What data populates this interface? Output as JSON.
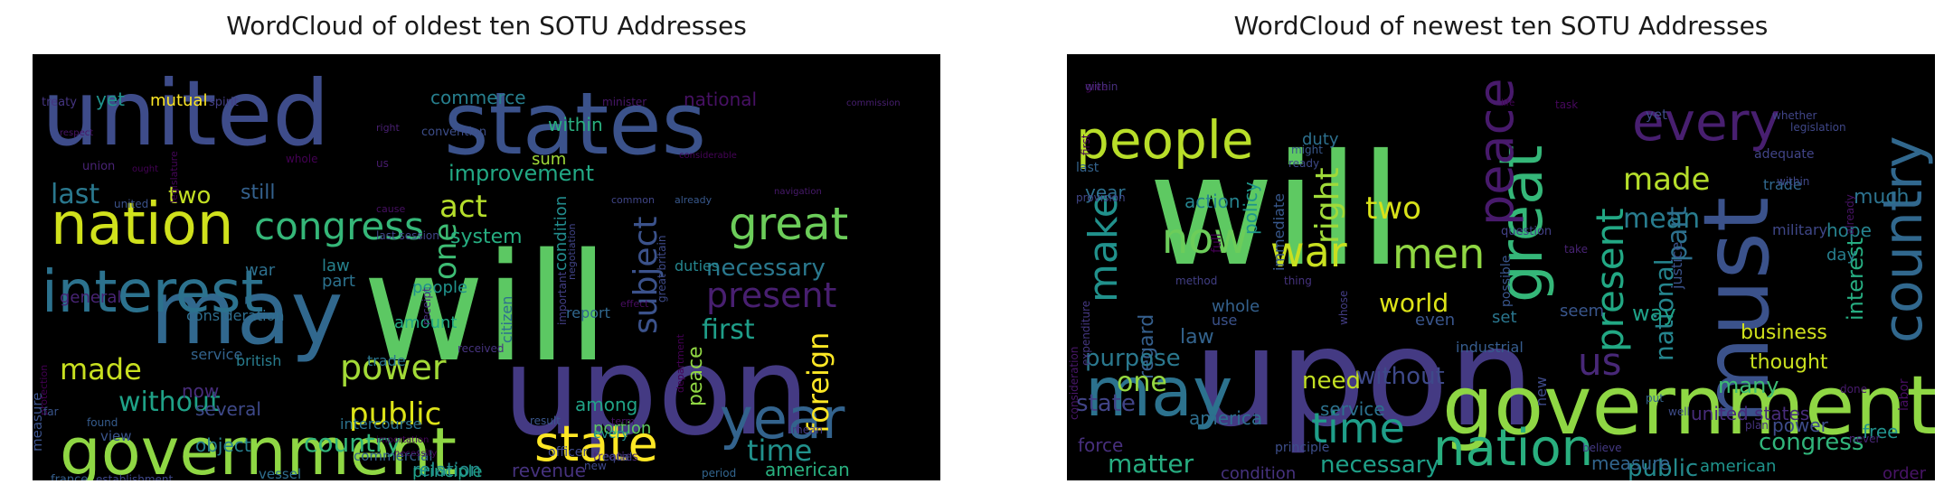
{
  "left": {
    "title": "WordCloud of oldest ten SOTU Addresses",
    "words": [
      {
        "t": "will",
        "c": "#5cc863"
      },
      {
        "t": "upon",
        "c": "#443a83"
      },
      {
        "t": "states",
        "c": "#3b528b"
      },
      {
        "t": "united",
        "c": "#3e4c8a"
      },
      {
        "t": "may",
        "c": "#31688e"
      },
      {
        "t": "government",
        "c": "#8fd744"
      },
      {
        "t": "nation",
        "c": "#d0e11c"
      },
      {
        "t": "interest",
        "c": "#2c728e"
      },
      {
        "t": "state",
        "c": "#fde725"
      },
      {
        "t": "year",
        "c": "#33638d"
      },
      {
        "t": "great",
        "c": "#6ccd5a"
      },
      {
        "t": "congress",
        "c": "#35b779"
      },
      {
        "t": "act",
        "c": "#b5de2b"
      },
      {
        "t": "present",
        "c": "#481f70"
      },
      {
        "t": "power",
        "c": "#a2da37"
      },
      {
        "t": "public",
        "c": "#dde318"
      },
      {
        "t": "made",
        "c": "#c8e020"
      },
      {
        "t": "last",
        "c": "#2a788e"
      },
      {
        "t": "time",
        "c": "#21918c"
      },
      {
        "t": "one",
        "c": "#3dbc74"
      },
      {
        "t": "subject",
        "c": "#3b528b"
      },
      {
        "t": "foreign",
        "c": "#fde725"
      },
      {
        "t": "first",
        "c": "#1f9e89"
      },
      {
        "t": "without",
        "c": "#1fa187"
      },
      {
        "t": "country",
        "c": "#31b57b"
      },
      {
        "t": "necessary",
        "c": "#2a788e"
      },
      {
        "t": "improvement",
        "c": "#22a884"
      },
      {
        "t": "system",
        "c": "#26ad81"
      },
      {
        "t": "two",
        "c": "#c2df23"
      },
      {
        "t": "still",
        "c": "#34618d"
      },
      {
        "t": "yet",
        "c": "#1f948c"
      },
      {
        "t": "mutual",
        "c": "#fde725"
      },
      {
        "t": "commerce",
        "c": "#277f8e"
      },
      {
        "t": "within",
        "c": "#29af7f"
      },
      {
        "t": "national",
        "c": "#471164"
      },
      {
        "t": "sum",
        "c": "#a0da39"
      },
      {
        "t": "relation",
        "c": "#238a8d"
      },
      {
        "t": "revenue",
        "c": "#46327e"
      },
      {
        "t": "american",
        "c": "#29af7f"
      },
      {
        "t": "peace",
        "c": "#90d743"
      },
      {
        "t": "among",
        "c": "#20a386"
      },
      {
        "t": "portion",
        "c": "#5ec962"
      },
      {
        "t": "several",
        "c": "#3e4989"
      },
      {
        "t": "amount",
        "c": "#22a884"
      },
      {
        "t": "general",
        "c": "#482475"
      },
      {
        "t": "law",
        "c": "#26828e"
      },
      {
        "t": "war",
        "c": "#2d708e"
      },
      {
        "t": "part",
        "c": "#2c728e"
      },
      {
        "t": "now",
        "c": "#472c7a"
      },
      {
        "t": "object",
        "c": "#277f8e"
      },
      {
        "t": "principle",
        "c": "#1fa088"
      },
      {
        "t": "condition",
        "c": "#228c8d"
      },
      {
        "t": "people",
        "c": "#20928c"
      },
      {
        "t": "report",
        "c": "#31688e"
      },
      {
        "t": "consideration",
        "c": "#2e6e8e"
      },
      {
        "t": "citizen",
        "c": "#2d708e"
      },
      {
        "t": "duties",
        "c": "#25858e"
      },
      {
        "t": "service",
        "c": "#33638d"
      },
      {
        "t": "british",
        "c": "#287c8e"
      },
      {
        "t": "trade",
        "c": "#2a768e"
      },
      {
        "t": "intercourse",
        "c": "#2c728e"
      },
      {
        "t": "vessel",
        "c": "#2e6d8e"
      },
      {
        "t": "commercial",
        "c": "#34618d"
      },
      {
        "t": "view",
        "c": "#3a548c"
      },
      {
        "t": "every",
        "c": "#21918c"
      },
      {
        "t": "officer",
        "c": "#3e4989"
      },
      {
        "t": "measure",
        "c": "#3b528b"
      },
      {
        "t": "france",
        "c": "#355f8d"
      },
      {
        "t": "establishment",
        "c": "#3f4788"
      },
      {
        "t": "period",
        "c": "#32658e"
      },
      {
        "t": "protection",
        "c": "#440154"
      },
      {
        "t": "treaties",
        "c": "#482878"
      },
      {
        "t": "united",
        "c": "#3b528b"
      },
      {
        "t": "found",
        "c": "#365c8d"
      },
      {
        "t": "far",
        "c": "#39558c"
      },
      {
        "t": "result",
        "c": "#39568c"
      },
      {
        "t": "new",
        "c": "#3f4889"
      },
      {
        "t": "equal",
        "c": "#3e4989"
      },
      {
        "t": "mean",
        "c": "#443983"
      },
      {
        "t": "convention",
        "c": "#3d4e8a"
      },
      {
        "t": "union",
        "c": "#482374"
      },
      {
        "t": "spirit",
        "c": "#433d84"
      },
      {
        "t": "treaty",
        "c": "#453581"
      },
      {
        "t": "us",
        "c": "#481b6d"
      },
      {
        "t": "common",
        "c": "#404688"
      },
      {
        "t": "already",
        "c": "#38588c"
      },
      {
        "t": "great britain",
        "c": "#3e4a89"
      },
      {
        "t": "negotiation",
        "c": "#414487"
      },
      {
        "t": "important",
        "c": "#423f85"
      },
      {
        "t": "last session",
        "c": "#404588"
      },
      {
        "t": "received",
        "c": "#46337f"
      },
      {
        "t": "receipt",
        "c": "#472d7b"
      },
      {
        "t": "minister",
        "c": "#481769"
      },
      {
        "t": "right",
        "c": "#482071"
      },
      {
        "t": "whole",
        "c": "#440154"
      },
      {
        "t": "cause",
        "c": "#471063"
      },
      {
        "t": "department",
        "c": "#440154"
      },
      {
        "t": "legislature",
        "c": "#450559"
      },
      {
        "t": "term",
        "c": "#471365"
      },
      {
        "t": "effect",
        "c": "#470d60"
      },
      {
        "t": "importation",
        "c": "#46085c"
      },
      {
        "t": "necessity",
        "c": "#460a5d"
      },
      {
        "t": "considerable",
        "c": "#450457"
      },
      {
        "t": "ought",
        "c": "#440256"
      },
      {
        "t": "respect",
        "c": "#481467"
      },
      {
        "t": "navigation",
        "c": "#481a6c"
      },
      {
        "t": "commission",
        "c": "#481f70"
      }
    ]
  },
  "right": {
    "title": "WordCloud of newest ten SOTU Addresses",
    "words": [
      {
        "t": "will",
        "c": "#5ec962"
      },
      {
        "t": "upon",
        "c": "#443a83"
      },
      {
        "t": "must",
        "c": "#3b528b"
      },
      {
        "t": "government",
        "c": "#8fd744"
      },
      {
        "t": "may",
        "c": "#2c728e"
      },
      {
        "t": "great",
        "c": "#35b779"
      },
      {
        "t": "country",
        "c": "#31688e"
      },
      {
        "t": "people",
        "c": "#b8de29"
      },
      {
        "t": "every",
        "c": "#481f70"
      },
      {
        "t": "nation",
        "c": "#29af7f"
      },
      {
        "t": "peace",
        "c": "#481a6c"
      },
      {
        "t": "now",
        "c": "#6ccd5a"
      },
      {
        "t": "war",
        "c": "#c8e020"
      },
      {
        "t": "men",
        "c": "#90d743"
      },
      {
        "t": "make",
        "c": "#21918c"
      },
      {
        "t": "present",
        "c": "#22a884"
      },
      {
        "t": "time",
        "c": "#1f9e89"
      },
      {
        "t": "us",
        "c": "#482878"
      },
      {
        "t": "right",
        "c": "#a0da39"
      },
      {
        "t": "made",
        "c": "#b5de2b"
      },
      {
        "t": "two",
        "c": "#d8e219"
      },
      {
        "t": "mean",
        "c": "#287c8e"
      },
      {
        "t": "national",
        "c": "#25858e"
      },
      {
        "t": "part",
        "c": "#2d708e"
      },
      {
        "t": "interest",
        "c": "#26ad81"
      },
      {
        "t": "way",
        "c": "#1fa188"
      },
      {
        "t": "world",
        "c": "#dde318"
      },
      {
        "t": "congress",
        "c": "#31b57b"
      },
      {
        "t": "many",
        "c": "#3dbc74"
      },
      {
        "t": "business",
        "c": "#d0e11c"
      },
      {
        "t": "thought",
        "c": "#cae11f"
      },
      {
        "t": "need",
        "c": "#c2df23"
      },
      {
        "t": "without",
        "c": "#3e4989"
      },
      {
        "t": "necessary",
        "c": "#1fa088"
      },
      {
        "t": "public",
        "c": "#238a8d"
      },
      {
        "t": "matter",
        "c": "#27ad81"
      },
      {
        "t": "service",
        "c": "#2c728e"
      },
      {
        "t": "action",
        "c": "#25838e"
      },
      {
        "t": "policy",
        "c": "#1f958b"
      },
      {
        "t": "duty",
        "c": "#2d708e"
      },
      {
        "t": "law",
        "c": "#33638d"
      },
      {
        "t": "regard",
        "c": "#355f8d"
      },
      {
        "t": "one",
        "c": "#95d840"
      },
      {
        "t": "purpose",
        "c": "#2a788e"
      },
      {
        "t": "state",
        "c": "#414487"
      },
      {
        "t": "america",
        "c": "#2e6e8e"
      },
      {
        "t": "force",
        "c": "#472f7d"
      },
      {
        "t": "condition",
        "c": "#46327e"
      },
      {
        "t": "measure",
        "c": "#32658e"
      },
      {
        "t": "hope",
        "c": "#26828e"
      },
      {
        "t": "seem",
        "c": "#39568c"
      },
      {
        "t": "even",
        "c": "#39558c"
      },
      {
        "t": "set",
        "c": "#2a768e"
      },
      {
        "t": "whole",
        "c": "#34618d"
      },
      {
        "t": "use",
        "c": "#3b528b"
      },
      {
        "t": "industrial",
        "c": "#365c8d"
      },
      {
        "t": "united states",
        "c": "#472c7a"
      },
      {
        "t": "american",
        "c": "#1f948c"
      },
      {
        "t": "free",
        "c": "#21918c"
      },
      {
        "t": "order",
        "c": "#481467"
      },
      {
        "t": "power",
        "c": "#3e4c8a"
      },
      {
        "t": "new",
        "c": "#3e4a89"
      },
      {
        "t": "justice",
        "c": "#3b528b"
      },
      {
        "t": "much",
        "c": "#2c728e"
      },
      {
        "t": "day",
        "c": "#277f8e"
      },
      {
        "t": "military",
        "c": "#3f4788"
      },
      {
        "t": "year",
        "c": "#2d708e"
      },
      {
        "t": "last",
        "c": "#33638d"
      },
      {
        "t": "immediate",
        "c": "#38588c"
      },
      {
        "t": "full",
        "c": "#440154"
      },
      {
        "t": "possible",
        "c": "#39568c"
      },
      {
        "t": "trade",
        "c": "#31688e"
      },
      {
        "t": "adequate",
        "c": "#414487"
      },
      {
        "t": "within",
        "c": "#3f4788"
      },
      {
        "t": "whether",
        "c": "#404588"
      },
      {
        "t": "yet",
        "c": "#3e4a89"
      },
      {
        "t": "task",
        "c": "#46085c"
      },
      {
        "t": "life",
        "c": "#450457"
      },
      {
        "t": "first",
        "c": "#440154"
      },
      {
        "t": "provision",
        "c": "#404688"
      },
      {
        "t": "might",
        "c": "#38588c"
      },
      {
        "t": "ready",
        "c": "#3e4989"
      },
      {
        "t": "question",
        "c": "#424086"
      },
      {
        "t": "method",
        "c": "#423f85"
      },
      {
        "t": "thing",
        "c": "#46337f"
      },
      {
        "t": "take",
        "c": "#482374"
      },
      {
        "t": "whose",
        "c": "#433d84"
      },
      {
        "t": "principle",
        "c": "#3d4e8a"
      },
      {
        "t": "put",
        "c": "#33638d"
      },
      {
        "t": "well",
        "c": "#3e4c8a"
      },
      {
        "t": "plan",
        "c": "#46337f"
      },
      {
        "t": "believe",
        "c": "#443983"
      },
      {
        "t": "never",
        "c": "#482576"
      },
      {
        "t": "done",
        "c": "#481b6d"
      },
      {
        "t": "already",
        "c": "#471365"
      },
      {
        "t": "labor",
        "c": "#470e61"
      },
      {
        "t": "expenditure",
        "c": "#453882"
      },
      {
        "t": "consideration",
        "c": "#481769"
      },
      {
        "t": "legislation",
        "c": "#3f4788"
      },
      {
        "t": "give",
        "c": "#46085c"
      },
      {
        "t": "within",
        "c": "#472f7d"
      }
    ]
  }
}
